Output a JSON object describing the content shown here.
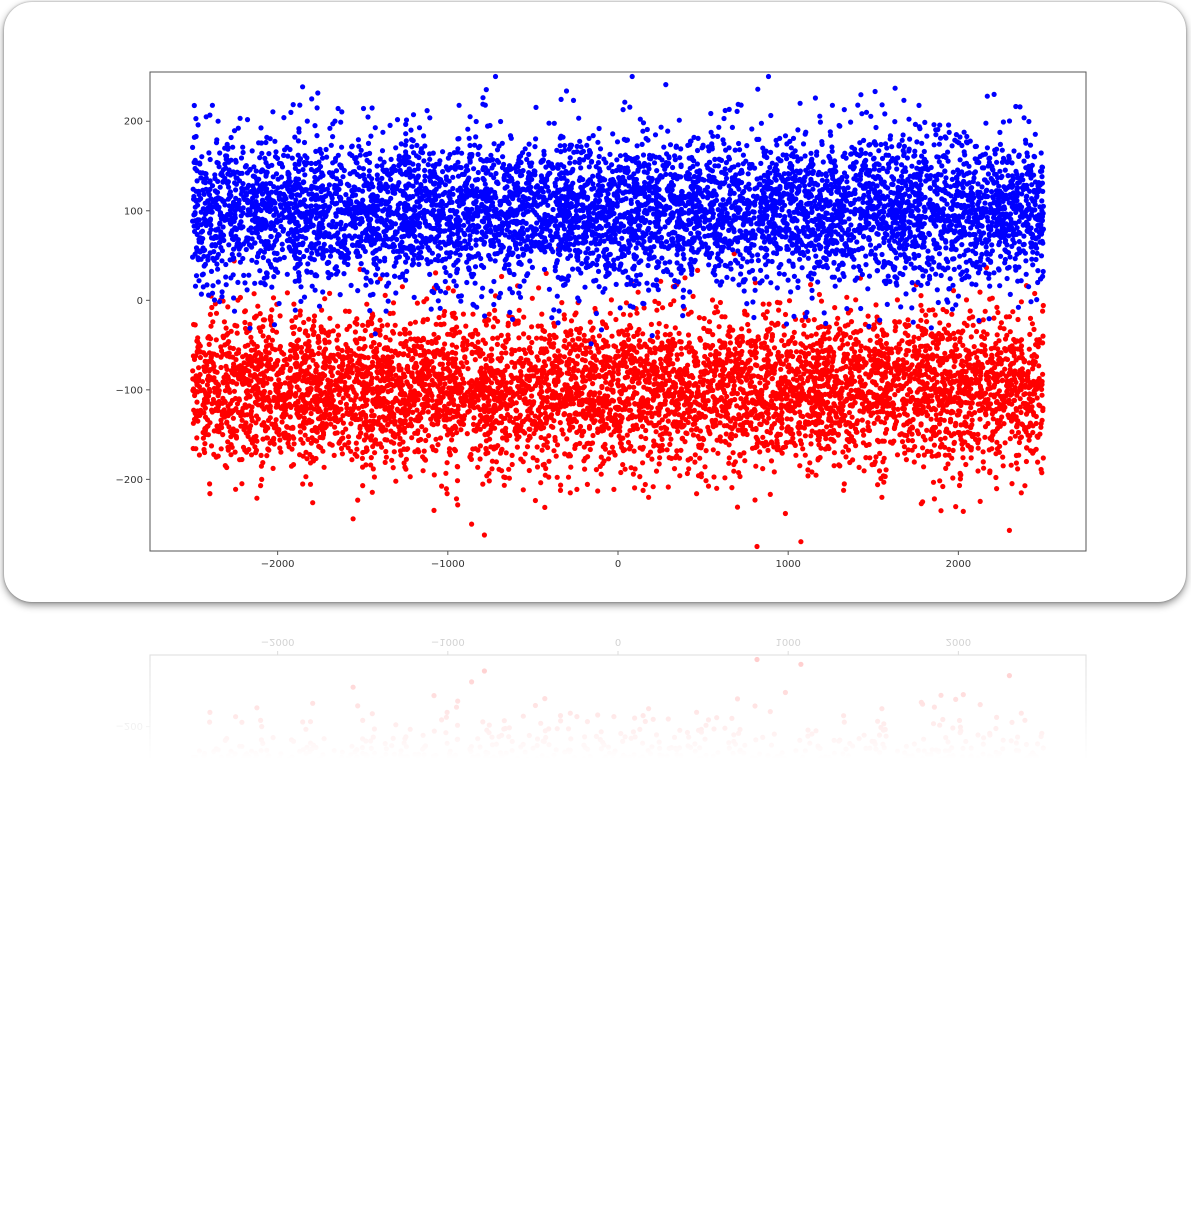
{
  "chart_data": {
    "type": "scatter",
    "title": "",
    "xlabel": "",
    "ylabel": "",
    "xlim": [
      -2750,
      2750
    ],
    "ylim": [
      -280,
      255
    ],
    "xticks": [
      -2000,
      -1000,
      0,
      1000,
      2000
    ],
    "yticks": [
      -200,
      -100,
      0,
      100,
      200
    ],
    "xtick_labels": [
      "−2000",
      "−1000",
      "0",
      "1000",
      "2000"
    ],
    "ytick_labels": [
      "−200",
      "−100",
      "0",
      "100",
      "200"
    ],
    "grid": false,
    "legend": "none",
    "series": [
      {
        "color": "#0000ff",
        "x_range": [
          -2500,
          2500
        ],
        "y_mean": 100,
        "y_std": 42,
        "count": 6000,
        "points": [
          [
            -1800,
            225
          ],
          [
            -1870,
            218
          ],
          [
            -780,
            218
          ],
          [
            30,
            213
          ],
          [
            630,
            212
          ],
          [
            700,
            211
          ],
          [
            1160,
            226
          ],
          [
            1070,
            220
          ],
          [
            2170,
            228
          ],
          [
            2210,
            230
          ],
          [
            -2480,
            203
          ],
          [
            -2420,
            205
          ],
          [
            -2350,
            200
          ],
          [
            1460,
            210
          ],
          [
            1330,
            213
          ]
        ]
      },
      {
        "color": "#ff0000",
        "x_range": [
          -2500,
          2500
        ],
        "y_mean": -100,
        "y_std": 42,
        "count": 6000,
        "points": [
          [
            -860,
            -250
          ],
          [
            2300,
            -257
          ],
          [
            1790,
            -225
          ],
          [
            180,
            -220
          ],
          [
            -280,
            -215
          ],
          [
            -2400,
            -205
          ],
          [
            -2100,
            -207
          ],
          [
            1330,
            -205
          ],
          [
            2370,
            -215
          ],
          [
            580,
            -210
          ],
          [
            -1500,
            -207
          ]
        ]
      }
    ]
  }
}
